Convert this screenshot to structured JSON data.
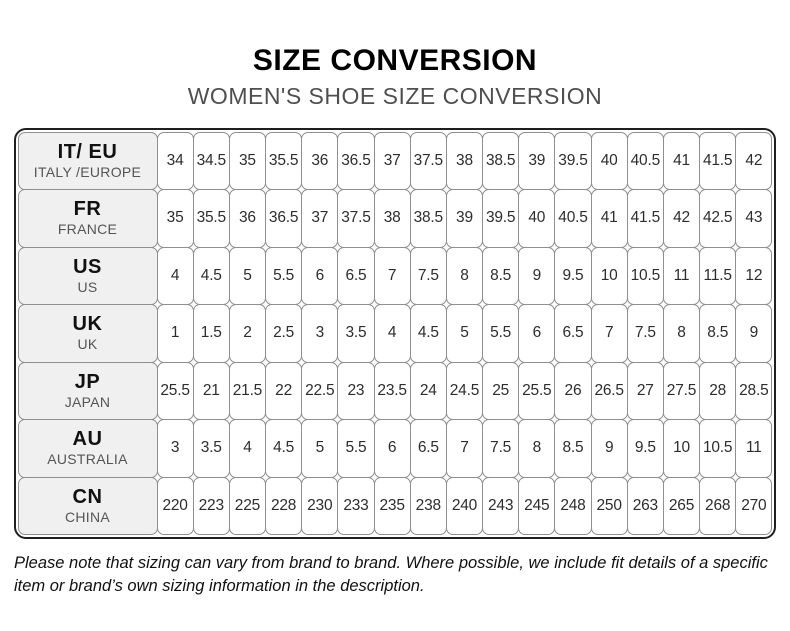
{
  "header": {
    "title": "SIZE CONVERSION",
    "subtitle": "WOMEN'S SHOE SIZE CONVERSION"
  },
  "table": {
    "rows": [
      {
        "code": "IT/ EU",
        "region": "ITALY /EUROPE",
        "values": [
          "34",
          "34.5",
          "35",
          "35.5",
          "36",
          "36.5",
          "37",
          "37.5",
          "38",
          "38.5",
          "39",
          "39.5",
          "40",
          "40.5",
          "41",
          "41.5",
          "42"
        ]
      },
      {
        "code": "FR",
        "region": "FRANCE",
        "values": [
          "35",
          "35.5",
          "36",
          "36.5",
          "37",
          "37.5",
          "38",
          "38.5",
          "39",
          "39.5",
          "40",
          "40.5",
          "41",
          "41.5",
          "42",
          "42.5",
          "43"
        ]
      },
      {
        "code": "US",
        "region": "US",
        "values": [
          "4",
          "4.5",
          "5",
          "5.5",
          "6",
          "6.5",
          "7",
          "7.5",
          "8",
          "8.5",
          "9",
          "9.5",
          "10",
          "10.5",
          "11",
          "11.5",
          "12"
        ]
      },
      {
        "code": "UK",
        "region": "UK",
        "values": [
          "1",
          "1.5",
          "2",
          "2.5",
          "3",
          "3.5",
          "4",
          "4.5",
          "5",
          "5.5",
          "6",
          "6.5",
          "7",
          "7.5",
          "8",
          "8.5",
          "9"
        ]
      },
      {
        "code": "JP",
        "region": "JAPAN",
        "values": [
          "25.5",
          "21",
          "21.5",
          "22",
          "22.5",
          "23",
          "23.5",
          "24",
          "24.5",
          "25",
          "25.5",
          "26",
          "26.5",
          "27",
          "27.5",
          "28",
          "28.5"
        ]
      },
      {
        "code": "AU",
        "region": "AUSTRALIA",
        "values": [
          "3",
          "3.5",
          "4",
          "4.5",
          "5",
          "5.5",
          "6",
          "6.5",
          "7",
          "7.5",
          "8",
          "8.5",
          "9",
          "9.5",
          "10",
          "10.5",
          "11"
        ]
      },
      {
        "code": "CN",
        "region": "CHINA",
        "values": [
          "220",
          "223",
          "225",
          "228",
          "230",
          "233",
          "235",
          "238",
          "240",
          "243",
          "245",
          "248",
          "250",
          "263",
          "265",
          "268",
          "270"
        ]
      }
    ]
  },
  "footer": {
    "note": "Please note that sizing can vary from brand to brand. Where possible, we include fit details of a specific item or brand’s own sizing information in the description."
  },
  "colors": {
    "label_cell_bg": "#f0f0f0",
    "outer_border": "#1f1f1f",
    "inner_border": "#8f8f8f"
  }
}
